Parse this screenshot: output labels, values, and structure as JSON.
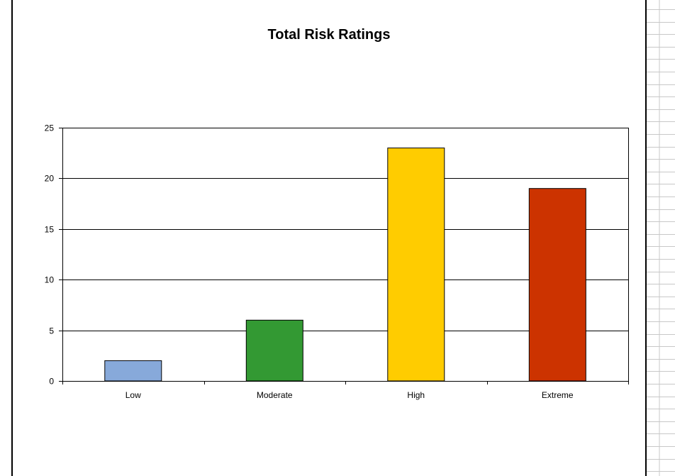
{
  "chart_data": {
    "type": "bar",
    "title": "Total Risk Ratings",
    "categories": [
      "Low",
      "Moderate",
      "High",
      "Extreme"
    ],
    "values": [
      2,
      6,
      23,
      19
    ],
    "colors": [
      "#87a9da",
      "#339933",
      "#ffcc00",
      "#cc3300"
    ],
    "ylim": [
      0,
      25
    ],
    "yticks": [
      0,
      5,
      10,
      15,
      20,
      25
    ],
    "xlabel": "",
    "ylabel": "",
    "grid": true,
    "legend": "none"
  }
}
